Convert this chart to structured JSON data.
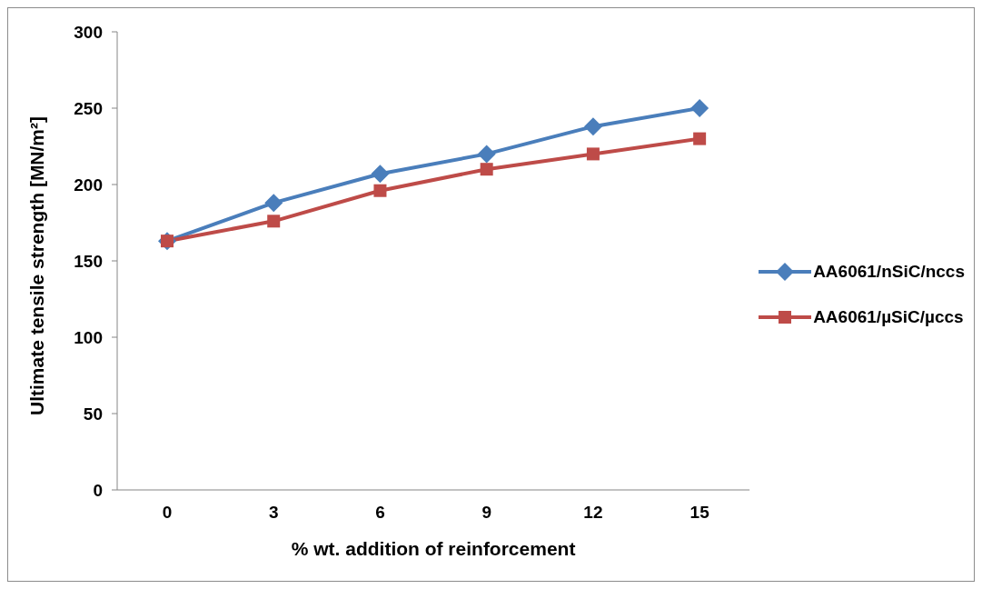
{
  "chart_data": {
    "type": "line",
    "xlabel": "% wt. addition of reinforcement",
    "ylabel": "Ultimate tensile strength [MN/m²]",
    "categories": [
      "0",
      "3",
      "6",
      "9",
      "12",
      "15"
    ],
    "ylim": [
      0,
      300
    ],
    "yticks": [
      0,
      50,
      100,
      150,
      200,
      250,
      300
    ],
    "grid": false,
    "legend": "right",
    "line_style": "solid",
    "series": [
      {
        "name": "AA6061/nSiC/nccs",
        "color": "#4a7ebb",
        "marker": "diamond",
        "values": [
          163,
          188,
          207,
          220,
          238,
          250
        ]
      },
      {
        "name": "AA6061/µSiC/µccs",
        "color": "#be4b48",
        "marker": "square",
        "values": [
          163,
          176,
          196,
          210,
          220,
          230
        ]
      }
    ]
  }
}
